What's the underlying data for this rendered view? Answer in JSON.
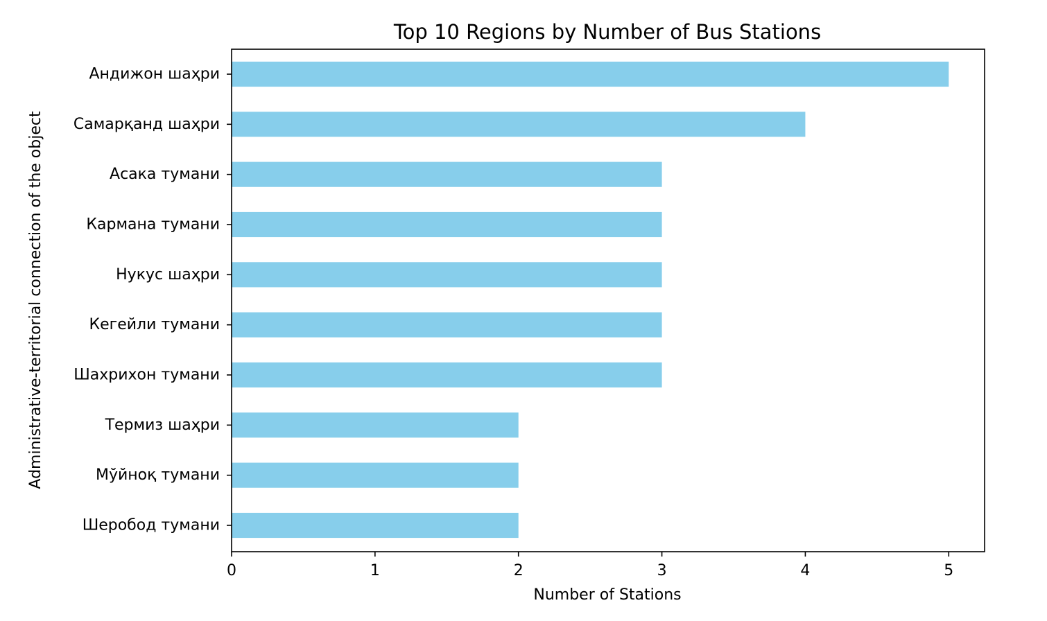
{
  "chart_data": {
    "type": "bar",
    "orientation": "horizontal",
    "title": "Top 10 Regions by Number of Bus Stations",
    "xlabel": "Number of Stations",
    "ylabel": "Administrative-territorial connection of the object",
    "categories": [
      "Андижон шаҳри",
      "Самарқанд шаҳри",
      "Асака тумани",
      "Кармана тумани",
      "Нукус шаҳри",
      "Кегейли тумани",
      "Шахрихон тумани",
      "Термиз шаҳри",
      "Мўйноқ тумани",
      "Шеробод тумани"
    ],
    "values": [
      5,
      4,
      3,
      3,
      3,
      3,
      3,
      2,
      2,
      2
    ],
    "xlim": [
      0,
      5.25
    ],
    "xticks": [
      0,
      1,
      2,
      3,
      4,
      5
    ],
    "bar_color": "#87ceeb",
    "grid": false,
    "legend": "none"
  }
}
